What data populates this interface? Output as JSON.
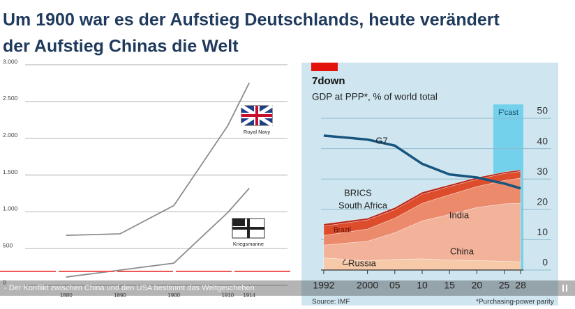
{
  "header": {
    "title_lines": [
      "Um 1900 war es der Aufstieg Deutschlands, heute verändert",
      "der Aufstieg Chinas die Welt"
    ]
  },
  "chart_data": [
    {
      "type": "line",
      "x": [
        1880,
        1890,
        1900,
        1910,
        1914
      ],
      "series": [
        {
          "name": "Royal Navy",
          "color": "#8c8c8c",
          "values": [
            680,
            700,
            1085,
            2170,
            2755
          ]
        },
        {
          "name": "Kriegsmarine",
          "color": "#8c8c8c",
          "values": [
            113,
            207,
            302,
            990,
            1320
          ]
        }
      ],
      "xlim": [
        1872,
        1922
      ],
      "xticks": [
        1880,
        1890,
        1900,
        1910,
        1914
      ],
      "ylim": [
        0,
        3000
      ],
      "yticks": [
        0,
        500,
        {
          "value": 1000,
          "label": "1.000"
        },
        {
          "value": 1500,
          "label": "1.500"
        },
        {
          "value": 2000,
          "label": "2.000"
        },
        {
          "value": 2500,
          "label": "2.500"
        },
        {
          "value": 3000,
          "label": "3.000"
        }
      ],
      "grid": true
    },
    {
      "type": "stacked_area",
      "title": "7down",
      "subtitle": "GDP at PPP*, % of world total",
      "annotation": "F'cast",
      "forecast_start": 2023,
      "group_label": "BRICS",
      "source": "Source: IMF",
      "note": "*Purchasing-power parity",
      "x": [
        1992,
        2000,
        2005,
        2010,
        2015,
        2020,
        2025,
        2028
      ],
      "series": [
        {
          "name": "Russia",
          "color": "#f6c9a8",
          "stack": true,
          "values": [
            4.0,
            3.0,
            3.5,
            3.7,
            3.3,
            3.1,
            2.9,
            2.7
          ]
        },
        {
          "name": "China",
          "color": "#f3b29a",
          "stack": true,
          "values": [
            4.2,
            6.5,
            8.8,
            12.5,
            15.0,
            17.5,
            18.9,
            19.3
          ]
        },
        {
          "name": "India",
          "color": "#ec8a6c",
          "stack": true,
          "values": [
            3.2,
            4.0,
            4.8,
            5.8,
            6.5,
            6.9,
            7.7,
            8.3
          ]
        },
        {
          "name": "Brazil",
          "color": "#dd4d2c",
          "stack": true,
          "values": [
            3.1,
            3.0,
            2.8,
            3.0,
            2.7,
            2.4,
            2.3,
            2.2
          ]
        },
        {
          "name": "South Africa",
          "color": "#b8281a",
          "stack": true,
          "values": [
            0.7,
            0.6,
            0.7,
            0.7,
            0.6,
            0.6,
            0.5,
            0.5
          ]
        },
        {
          "name": "G7",
          "color": "#17557f",
          "stack": false,
          "values": [
            44.3,
            43.0,
            41.0,
            35.0,
            31.5,
            30.5,
            28.5,
            26.9
          ]
        }
      ],
      "xlim": [
        1991.5,
        2028.5
      ],
      "xticks": [
        1992,
        2000,
        {
          "value": 2005,
          "label": "05"
        },
        {
          "value": 2010,
          "label": "10"
        },
        {
          "value": 2015,
          "label": "15"
        },
        {
          "value": 2020,
          "label": "20"
        },
        {
          "value": 2025,
          "label": "25"
        },
        {
          "value": 2028,
          "label": "28"
        }
      ],
      "ylim": [
        0,
        50
      ],
      "yticks": [
        0,
        10,
        20,
        30,
        40,
        50
      ],
      "grid": true
    }
  ],
  "video_caption": "- Der Konflikt zwischen China und den USA bestimmt das Weltgeschehen"
}
